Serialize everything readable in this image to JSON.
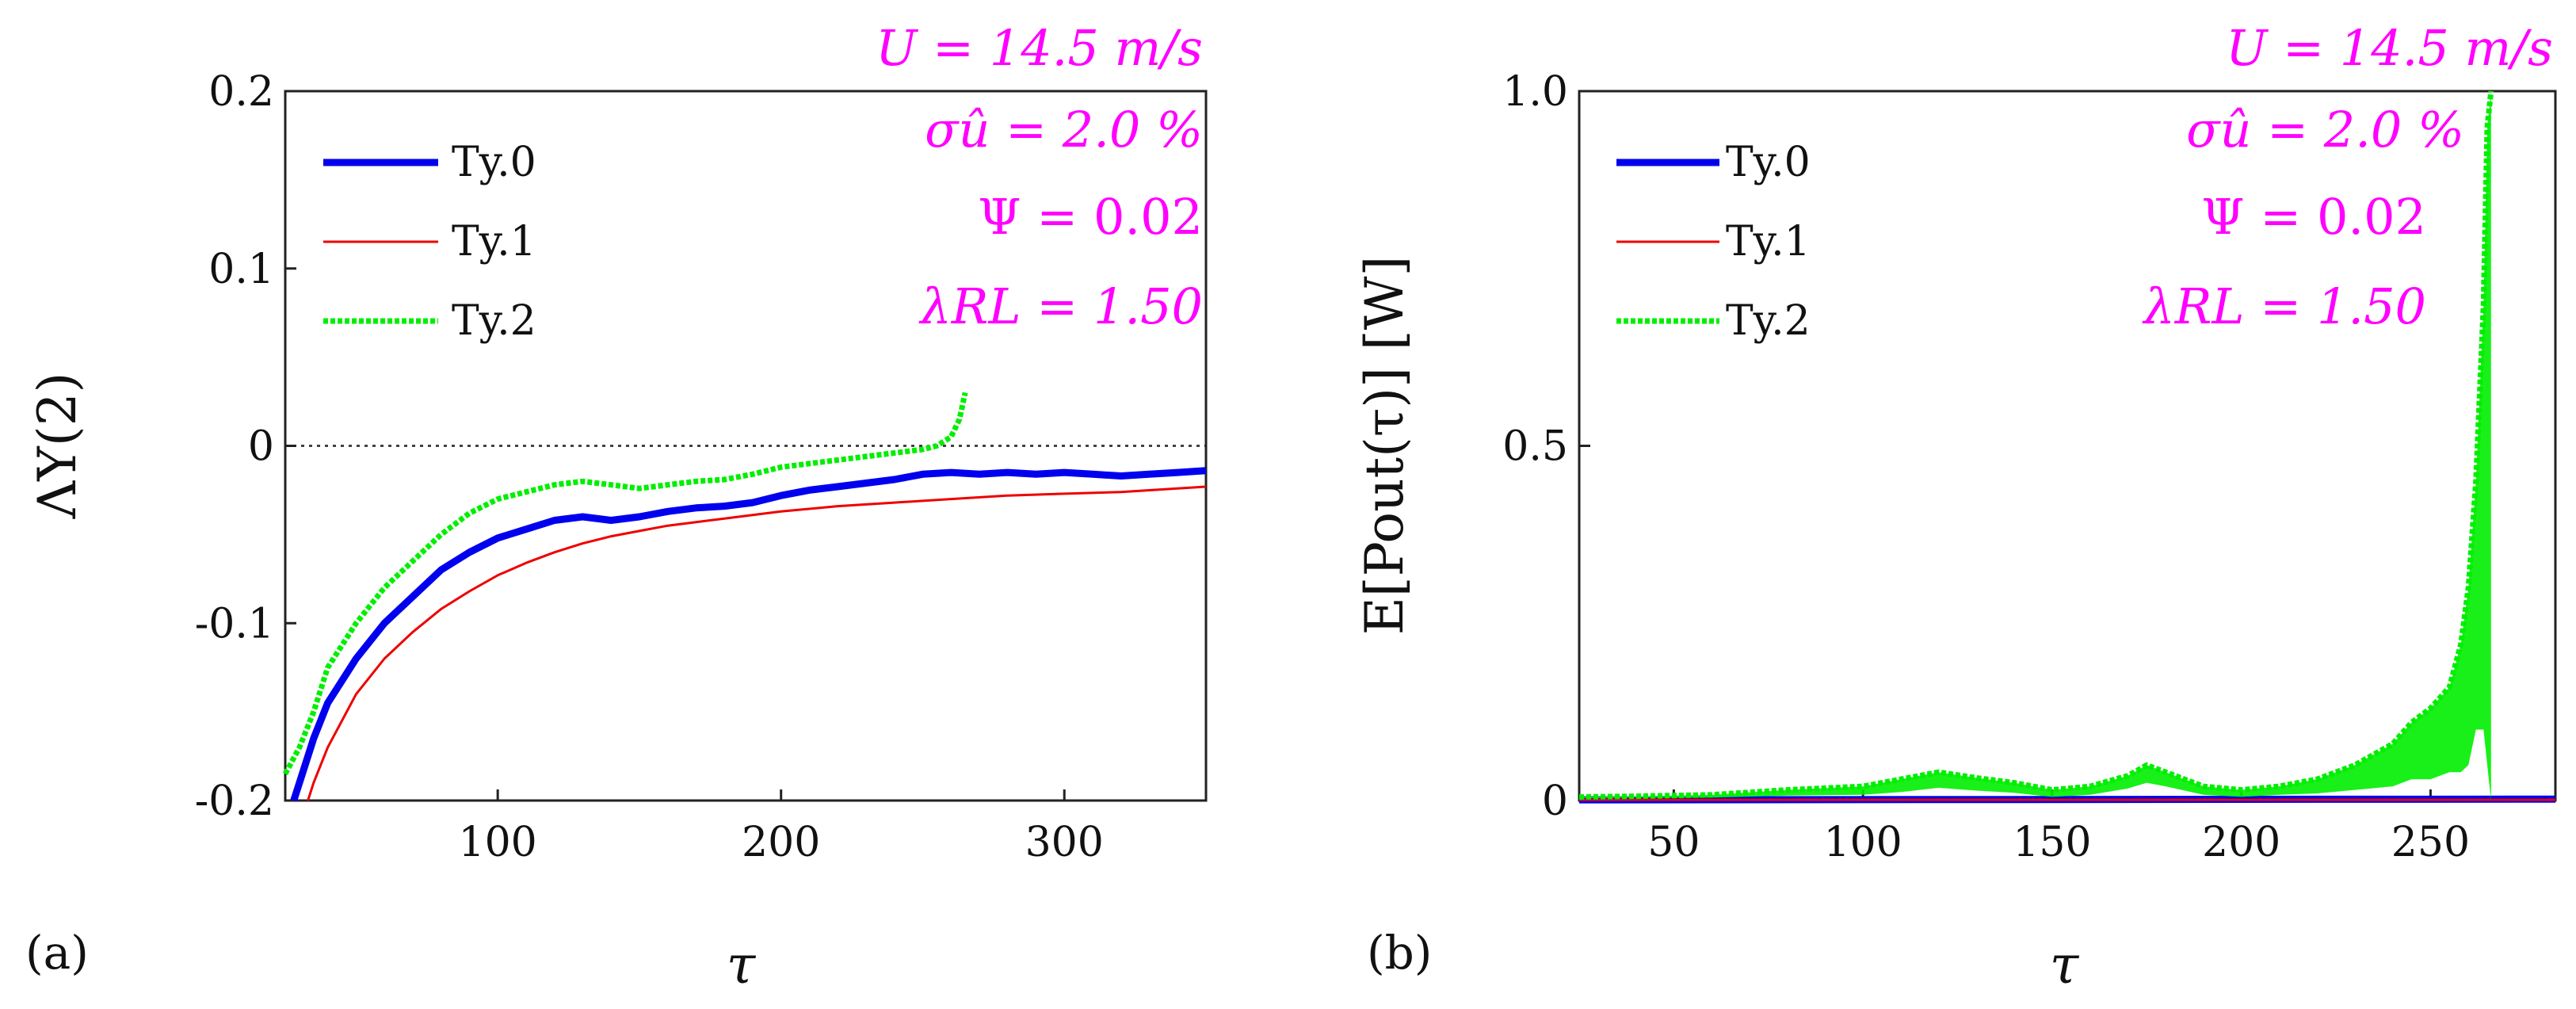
{
  "colors": {
    "series_0": "#0000ee",
    "series_1": "#ee0000",
    "series_2": "#00ee00",
    "annotation": "#ff00ff",
    "axis": "#222222"
  },
  "chart_data": [
    {
      "type": "line",
      "panel_label": "(a)",
      "xlabel": "τ",
      "ylabel": "ΛΥ(2)",
      "xlim": [
        25,
        350
      ],
      "ylim": [
        -0.2,
        0.2
      ],
      "xticks": [
        100,
        200,
        300
      ],
      "xtick_labels": [
        "100",
        "200",
        "300"
      ],
      "yticks": [
        -0.2,
        -0.1,
        0,
        0.1,
        0.2
      ],
      "ytick_labels": [
        "-0.2",
        "-0.1",
        "0",
        "0.1",
        "0.2"
      ],
      "reference_line": 0,
      "legend": [
        "Ty.0",
        "Ty.1",
        "Ty.2"
      ],
      "annotations": [
        "U = 14.5 m/s",
        "σû = 2.0 %",
        "Ψ = 0.02",
        "λRL = 1.50"
      ],
      "series": [
        {
          "name": "Ty.0",
          "x": [
            28,
            30,
            35,
            40,
            50,
            60,
            70,
            80,
            90,
            100,
            110,
            120,
            130,
            140,
            150,
            160,
            170,
            180,
            190,
            200,
            210,
            220,
            230,
            240,
            250,
            260,
            270,
            280,
            290,
            300,
            310,
            320,
            330,
            340,
            350
          ],
          "values": [
            -0.2,
            -0.19,
            -0.165,
            -0.145,
            -0.12,
            -0.1,
            -0.085,
            -0.07,
            -0.06,
            -0.052,
            -0.047,
            -0.042,
            -0.04,
            -0.042,
            -0.04,
            -0.037,
            -0.035,
            -0.034,
            -0.032,
            -0.028,
            -0.025,
            -0.023,
            -0.021,
            -0.019,
            -0.016,
            -0.015,
            -0.016,
            -0.015,
            -0.016,
            -0.015,
            -0.016,
            -0.017,
            -0.016,
            -0.015,
            -0.014
          ]
        },
        {
          "name": "Ty.1",
          "x": [
            33,
            35,
            40,
            50,
            60,
            70,
            80,
            90,
            100,
            110,
            120,
            130,
            140,
            150,
            160,
            170,
            180,
            190,
            200,
            220,
            240,
            260,
            280,
            300,
            320,
            340,
            350
          ],
          "values": [
            -0.2,
            -0.19,
            -0.17,
            -0.14,
            -0.12,
            -0.105,
            -0.092,
            -0.082,
            -0.073,
            -0.066,
            -0.06,
            -0.055,
            -0.051,
            -0.048,
            -0.045,
            -0.043,
            -0.041,
            -0.039,
            -0.037,
            -0.034,
            -0.032,
            -0.03,
            -0.028,
            -0.027,
            -0.026,
            -0.024,
            -0.023
          ]
        },
        {
          "name": "Ty.2",
          "x": [
            25,
            30,
            35,
            40,
            50,
            60,
            70,
            80,
            90,
            100,
            110,
            120,
            130,
            140,
            150,
            160,
            170,
            180,
            190,
            200,
            210,
            220,
            230,
            240,
            250,
            255,
            260,
            263,
            265
          ],
          "values": [
            -0.185,
            -0.17,
            -0.15,
            -0.125,
            -0.1,
            -0.08,
            -0.065,
            -0.05,
            -0.038,
            -0.03,
            -0.026,
            -0.022,
            -0.02,
            -0.022,
            -0.024,
            -0.022,
            -0.02,
            -0.019,
            -0.016,
            -0.012,
            -0.01,
            -0.008,
            -0.006,
            -0.004,
            -0.002,
            0.0,
            0.005,
            0.015,
            0.03
          ]
        }
      ]
    },
    {
      "type": "line",
      "panel_label": "(b)",
      "xlabel": "τ",
      "ylabel": "E[Pout(τ)] [W]",
      "xlim": [
        25,
        283
      ],
      "ylim": [
        0,
        1
      ],
      "xticks": [
        50,
        100,
        150,
        200,
        250
      ],
      "xtick_labels": [
        "50",
        "100",
        "150",
        "200",
        "250"
      ],
      "yticks": [
        0,
        0.5,
        1
      ],
      "ytick_labels": [
        "0",
        "0.5",
        "1.0"
      ],
      "legend": [
        "Ty.0",
        "Ty.1",
        "Ty.2"
      ],
      "annotations": [
        "U = 14.5 m/s",
        "σû = 2.0 %",
        "Ψ = 0.02",
        "λRL = 1.50"
      ],
      "series": [
        {
          "name": "Ty.0",
          "x": [
            25,
            283
          ],
          "values": [
            0.001,
            0.002
          ]
        },
        {
          "name": "Ty.1",
          "x": [
            25,
            283
          ],
          "values": [
            0.001,
            0.001
          ]
        },
        {
          "name": "Ty.2",
          "x": [
            25,
            40,
            60,
            80,
            100,
            110,
            120,
            130,
            140,
            150,
            160,
            170,
            175,
            180,
            190,
            200,
            210,
            220,
            230,
            240,
            245,
            250,
            255,
            258,
            260,
            262,
            264,
            265,
            266
          ],
          "values": [
            0.005,
            0.006,
            0.008,
            0.015,
            0.02,
            0.03,
            0.04,
            0.032,
            0.025,
            0.015,
            0.02,
            0.035,
            0.05,
            0.04,
            0.02,
            0.015,
            0.02,
            0.03,
            0.05,
            0.08,
            0.11,
            0.13,
            0.16,
            0.22,
            0.3,
            0.45,
            0.7,
            0.95,
            1.0
          ],
          "band": [
            0.002,
            0.002,
            0.004,
            0.008,
            0.012,
            0.018,
            0.022,
            0.018,
            0.014,
            0.01,
            0.012,
            0.018,
            0.025,
            0.02,
            0.012,
            0.01,
            0.012,
            0.02,
            0.035,
            0.06,
            0.08,
            0.1,
            0.12,
            0.18,
            0.25,
            0.35,
            0.6,
            0.9,
            1.0
          ]
        }
      ]
    }
  ]
}
